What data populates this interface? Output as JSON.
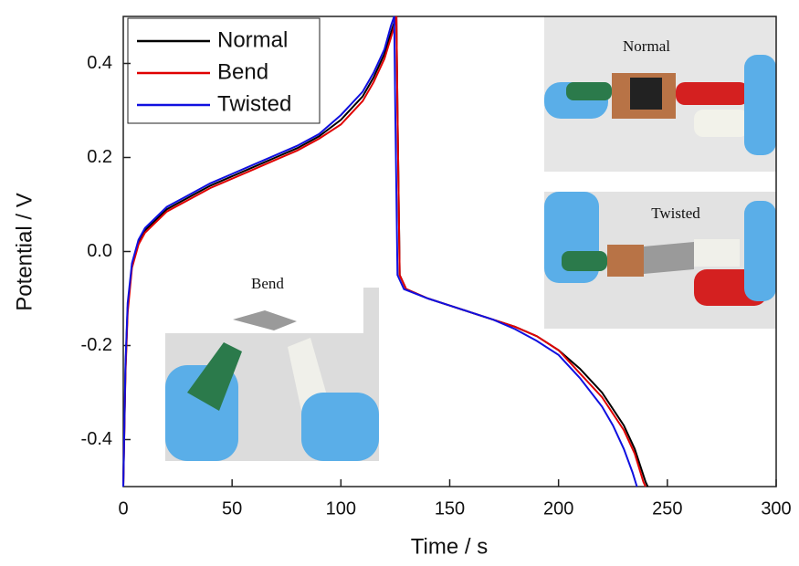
{
  "chart_data": {
    "type": "line",
    "xlabel": "Time / s",
    "ylabel": "Potential / V",
    "xlim": [
      0,
      300
    ],
    "xticks": [
      0,
      50,
      100,
      150,
      200,
      250,
      300
    ],
    "ylim": [
      -0.5,
      0.5
    ],
    "yticks": [
      -0.4,
      -0.2,
      {
        "value": 0,
        "label": "0.0"
      },
      0.2,
      0.4
    ],
    "legend": "upper left",
    "annotations": [
      "Normal",
      "Twisted",
      "Bend"
    ],
    "series": [
      {
        "name": "Normal",
        "color": "#000000",
        "x": [
          0,
          1,
          2,
          4,
          7,
          10,
          20,
          30,
          40,
          50,
          60,
          70,
          80,
          90,
          100,
          110,
          115,
          120,
          124,
          125.5,
          126,
          127,
          130,
          140,
          150,
          160,
          170,
          180,
          190,
          200,
          210,
          220,
          230,
          235,
          240,
          241
        ],
        "values": [
          -0.5,
          -0.25,
          -0.12,
          -0.03,
          0.02,
          0.045,
          0.09,
          0.115,
          0.14,
          0.16,
          0.18,
          0.2,
          0.22,
          0.245,
          0.28,
          0.33,
          0.37,
          0.42,
          0.48,
          0.5,
          0.3,
          -0.05,
          -0.08,
          -0.1,
          -0.115,
          -0.13,
          -0.145,
          -0.16,
          -0.18,
          -0.21,
          -0.25,
          -0.3,
          -0.37,
          -0.42,
          -0.49,
          -0.5
        ]
      },
      {
        "name": "Bend",
        "color": "#e00000",
        "x": [
          0,
          1,
          2,
          4,
          7,
          10,
          20,
          30,
          40,
          50,
          60,
          70,
          80,
          90,
          100,
          110,
          115,
          120,
          124,
          125.5,
          126,
          127,
          130,
          140,
          150,
          160,
          170,
          180,
          190,
          200,
          210,
          220,
          230,
          235,
          239,
          240
        ],
        "values": [
          -0.5,
          -0.26,
          -0.13,
          -0.035,
          0.015,
          0.04,
          0.085,
          0.11,
          0.135,
          0.155,
          0.175,
          0.195,
          0.215,
          0.24,
          0.27,
          0.32,
          0.36,
          0.41,
          0.47,
          0.5,
          0.3,
          -0.05,
          -0.08,
          -0.1,
          -0.115,
          -0.13,
          -0.145,
          -0.16,
          -0.18,
          -0.21,
          -0.26,
          -0.31,
          -0.38,
          -0.43,
          -0.49,
          -0.5
        ]
      },
      {
        "name": "Twisted",
        "color": "#1010e0",
        "x": [
          0,
          1,
          2,
          4,
          7,
          10,
          20,
          30,
          40,
          50,
          60,
          70,
          80,
          90,
          100,
          110,
          115,
          120,
          123,
          124.5,
          125,
          126,
          129,
          140,
          150,
          160,
          170,
          180,
          190,
          200,
          210,
          220,
          225,
          230,
          234,
          236
        ],
        "values": [
          -0.5,
          -0.24,
          -0.11,
          -0.025,
          0.025,
          0.05,
          0.095,
          0.12,
          0.145,
          0.165,
          0.185,
          0.205,
          0.225,
          0.25,
          0.29,
          0.34,
          0.38,
          0.43,
          0.48,
          0.5,
          0.3,
          -0.05,
          -0.08,
          -0.1,
          -0.115,
          -0.13,
          -0.145,
          -0.165,
          -0.19,
          -0.22,
          -0.27,
          -0.33,
          -0.37,
          -0.42,
          -0.47,
          -0.5
        ]
      }
    ]
  }
}
